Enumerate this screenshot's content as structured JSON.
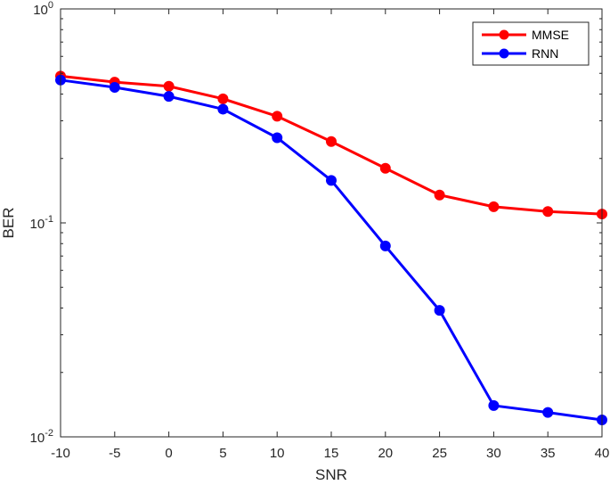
{
  "chart_data": {
    "type": "line",
    "xlabel": "SNR",
    "ylabel": "BER",
    "x": [
      -10,
      -5,
      0,
      5,
      10,
      15,
      20,
      25,
      30,
      35,
      40
    ],
    "xlim": [
      -10,
      40
    ],
    "ylim": [
      0.01,
      1
    ],
    "yscale": "log",
    "x_ticks": [
      "-10",
      "-5",
      "0",
      "5",
      "10",
      "15",
      "20",
      "25",
      "30",
      "35",
      "40"
    ],
    "y_ticks": [
      {
        "value": 1,
        "base": "10",
        "exp": "0"
      },
      {
        "value": 0.1,
        "base": "10",
        "exp": "-1"
      },
      {
        "value": 0.01,
        "base": "10",
        "exp": "-2"
      }
    ],
    "grid": false,
    "legend_position": "top-right",
    "series": [
      {
        "name": "MMSE",
        "color": "#ff0000",
        "values": [
          0.485,
          0.455,
          0.435,
          0.38,
          0.315,
          0.24,
          0.18,
          0.135,
          0.119,
          0.113,
          0.11
        ]
      },
      {
        "name": "RNN",
        "color": "#0000ff",
        "values": [
          0.465,
          0.43,
          0.39,
          0.34,
          0.25,
          0.158,
          0.078,
          0.039,
          0.014,
          0.013,
          0.012
        ]
      }
    ]
  }
}
